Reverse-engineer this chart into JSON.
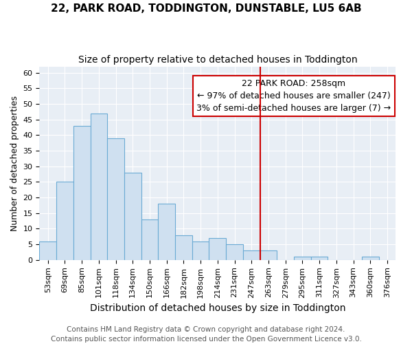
{
  "title": "22, PARK ROAD, TODDINGTON, DUNSTABLE, LU5 6AB",
  "subtitle": "Size of property relative to detached houses in Toddington",
  "xlabel": "Distribution of detached houses by size in Toddington",
  "ylabel": "Number of detached properties",
  "bin_labels": [
    "53sqm",
    "69sqm",
    "85sqm",
    "101sqm",
    "118sqm",
    "134sqm",
    "150sqm",
    "166sqm",
    "182sqm",
    "198sqm",
    "214sqm",
    "231sqm",
    "247sqm",
    "263sqm",
    "279sqm",
    "295sqm",
    "311sqm",
    "327sqm",
    "343sqm",
    "360sqm",
    "376sqm"
  ],
  "values": [
    6,
    25,
    43,
    47,
    39,
    28,
    13,
    18,
    8,
    6,
    7,
    5,
    3,
    3,
    0,
    1,
    1,
    0,
    0,
    1,
    0
  ],
  "bar_color": "#cfe0f0",
  "bar_edge_color": "#6aaad4",
  "bar_width": 1.0,
  "vline_x_index": 12.5,
  "vline_color": "#cc0000",
  "annotation_line1": "22 PARK ROAD: 258sqm",
  "annotation_line2": "← 97% of detached houses are smaller (247)",
  "annotation_line3": "3% of semi-detached houses are larger (7) →",
  "annotation_box_color": "#ffffff",
  "annotation_box_edge": "#cc0000",
  "ylim": [
    0,
    62
  ],
  "yticks": [
    0,
    5,
    10,
    15,
    20,
    25,
    30,
    35,
    40,
    45,
    50,
    55,
    60
  ],
  "footer1": "Contains HM Land Registry data © Crown copyright and database right 2024.",
  "footer2": "Contains public sector information licensed under the Open Government Licence v3.0.",
  "fig_bg_color": "#ffffff",
  "bg_color": "#e8eef5",
  "grid_color": "#ffffff",
  "title_fontsize": 11,
  "subtitle_fontsize": 10,
  "xlabel_fontsize": 10,
  "ylabel_fontsize": 9,
  "tick_fontsize": 8,
  "annotation_fontsize": 9,
  "footer_fontsize": 7.5
}
